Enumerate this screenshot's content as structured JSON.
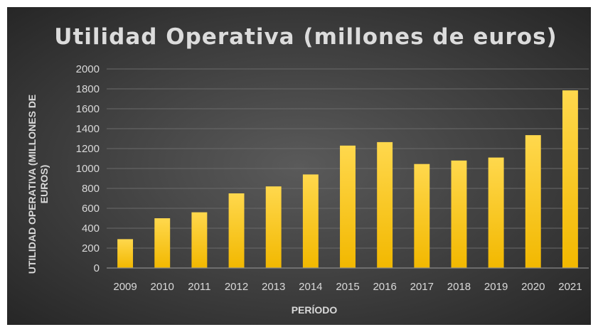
{
  "chart_data": {
    "type": "bar",
    "title": "Utilidad Operativa (millones de euros)",
    "ylabel_lines": [
      "UTILIDAD OPERATIVA (MILLONES DE",
      "EUROS)"
    ],
    "xlabel": "PERÍODO",
    "categories": [
      "2009",
      "2010",
      "2011",
      "2012",
      "2013",
      "2014",
      "2015",
      "2016",
      "2017",
      "2018",
      "2019",
      "2020",
      "2021"
    ],
    "values": [
      290,
      500,
      560,
      750,
      820,
      940,
      1230,
      1265,
      1045,
      1080,
      1110,
      1335,
      1785
    ],
    "ylim": [
      0,
      2000
    ],
    "yticks": [
      "0",
      "200",
      "400",
      "600",
      "800",
      "1000",
      "1200",
      "1400",
      "1600",
      "1800",
      "2000"
    ],
    "grid": true,
    "bar_color_top": "#ffd84d",
    "bar_color_bottom": "#f2b800",
    "background": "#3e3e3e"
  }
}
